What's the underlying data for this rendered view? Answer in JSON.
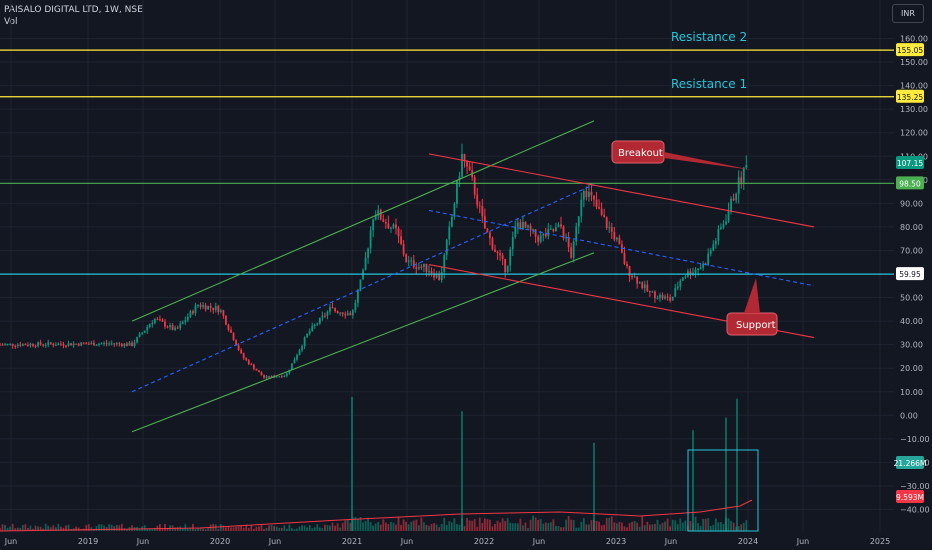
{
  "header": {
    "title": "PAISALO DIGITAL LTD, 1W, NSE",
    "volume_label": "Vol"
  },
  "currency": "INR",
  "annotations": {
    "resistance_2": "Resistance 2",
    "resistance_1": "Resistance 1",
    "breakout": "Breakout",
    "support": "Support"
  },
  "price_badges": {
    "resistance_2": "155.05",
    "resistance_1": "135.25",
    "last_price": "107.15",
    "breakout_level": "98.50",
    "support_level": "59.95",
    "volume_1": "21.266M",
    "volume_2": "9.593M"
  },
  "chart_data": {
    "type": "candlestick",
    "y_axis": {
      "ticks": [
        "160.00",
        "150.00",
        "140.00",
        "130.00",
        "120.00",
        "110.00",
        "100.00",
        "90.00",
        "80.00",
        "70.00",
        "60.00",
        "50.00",
        "40.00",
        "30.00",
        "20.00",
        "10.00",
        "0.00",
        "−10.00",
        "−20.00",
        "−30.00",
        "−40.00"
      ],
      "range": [
        -40,
        160
      ]
    },
    "x_axis": {
      "ticks": [
        {
          "label": "Jun",
          "date": "2018-06"
        },
        {
          "label": "2019",
          "date": "2019-01"
        },
        {
          "label": "Jun",
          "date": "2019-06"
        },
        {
          "label": "2020",
          "date": "2020-01"
        },
        {
          "label": "Jun",
          "date": "2020-06"
        },
        {
          "label": "2021",
          "date": "2021-01"
        },
        {
          "label": "Jun",
          "date": "2021-06"
        },
        {
          "label": "2022",
          "date": "2022-01"
        },
        {
          "label": "Jun",
          "date": "2022-06"
        },
        {
          "label": "2023",
          "date": "2023-01"
        },
        {
          "label": "Jun",
          "date": "2023-06"
        },
        {
          "label": "2024",
          "date": "2024-01"
        },
        {
          "label": "Jun",
          "date": "2024-06"
        },
        {
          "label": "2025",
          "date": "2025-01"
        }
      ]
    },
    "price_path": [
      [
        "2018-05",
        30
      ],
      [
        "2019-03",
        30.5
      ],
      [
        "2019-05",
        30
      ],
      [
        "2019-07",
        41
      ],
      [
        "2019-09",
        36
      ],
      [
        "2019-11",
        47
      ],
      [
        "2020-01",
        45
      ],
      [
        "2020-03",
        25
      ],
      [
        "2020-05",
        16
      ],
      [
        "2020-07",
        17
      ],
      [
        "2020-09",
        35
      ],
      [
        "2020-11",
        45
      ],
      [
        "2021-01",
        43
      ],
      [
        "2021-02",
        60
      ],
      [
        "2021-03",
        87
      ],
      [
        "2021-05",
        78
      ],
      [
        "2021-06",
        65
      ],
      [
        "2021-08",
        62
      ],
      [
        "2021-09",
        58
      ],
      [
        "2021-10",
        82
      ],
      [
        "2021-11",
        110
      ],
      [
        "2021-12",
        98
      ],
      [
        "2022-01",
        80
      ],
      [
        "2022-02",
        70
      ],
      [
        "2022-03",
        62
      ],
      [
        "2022-04",
        82
      ],
      [
        "2022-06",
        75
      ],
      [
        "2022-08",
        80
      ],
      [
        "2022-09",
        67
      ],
      [
        "2022-10",
        98
      ],
      [
        "2022-12",
        82
      ],
      [
        "2023-01",
        75
      ],
      [
        "2023-02",
        62
      ],
      [
        "2023-04",
        52
      ],
      [
        "2023-06",
        49
      ],
      [
        "2023-07",
        59
      ],
      [
        "2023-09",
        64
      ],
      [
        "2023-11",
        84
      ],
      [
        "2023-12",
        97
      ],
      [
        "2024-01",
        107.15
      ]
    ],
    "volume_spikes": [
      [
        "2021-01",
        21.3
      ],
      [
        "2021-11",
        19
      ],
      [
        "2022-11",
        14
      ],
      [
        "2023-08",
        16
      ],
      [
        "2023-11",
        18
      ],
      [
        "2023-12",
        21
      ]
    ],
    "horizontal_levels": [
      {
        "value": 155.05,
        "color": "#ffeb3b"
      },
      {
        "value": 135.25,
        "color": "#ffeb3b"
      },
      {
        "value": 98.5,
        "color": "#4caf50"
      },
      {
        "value": 59.95,
        "color": "#26c6da"
      }
    ],
    "trendlines": [
      {
        "color": "#4caf50",
        "from": [
          "2019-05",
          40
        ],
        "to": [
          "2022-11",
          125
        ]
      },
      {
        "color": "#4caf50",
        "from": [
          "2019-05",
          -7
        ],
        "to": [
          "2022-11",
          69
        ]
      },
      {
        "color": "#2962ff",
        "dashed": true,
        "from": [
          "2019-05",
          10
        ],
        "to": [
          "2022-11",
          98
        ]
      },
      {
        "color": "#f23645",
        "from": [
          "2021-08",
          111
        ],
        "to": [
          "2024-07",
          80
        ]
      },
      {
        "color": "#f23645",
        "from": [
          "2021-08",
          64
        ],
        "to": [
          "2024-07",
          33
        ]
      },
      {
        "color": "#2962ff",
        "dashed": true,
        "from": [
          "2021-08",
          87
        ],
        "to": [
          "2024-07",
          55
        ]
      }
    ],
    "grid": true
  }
}
